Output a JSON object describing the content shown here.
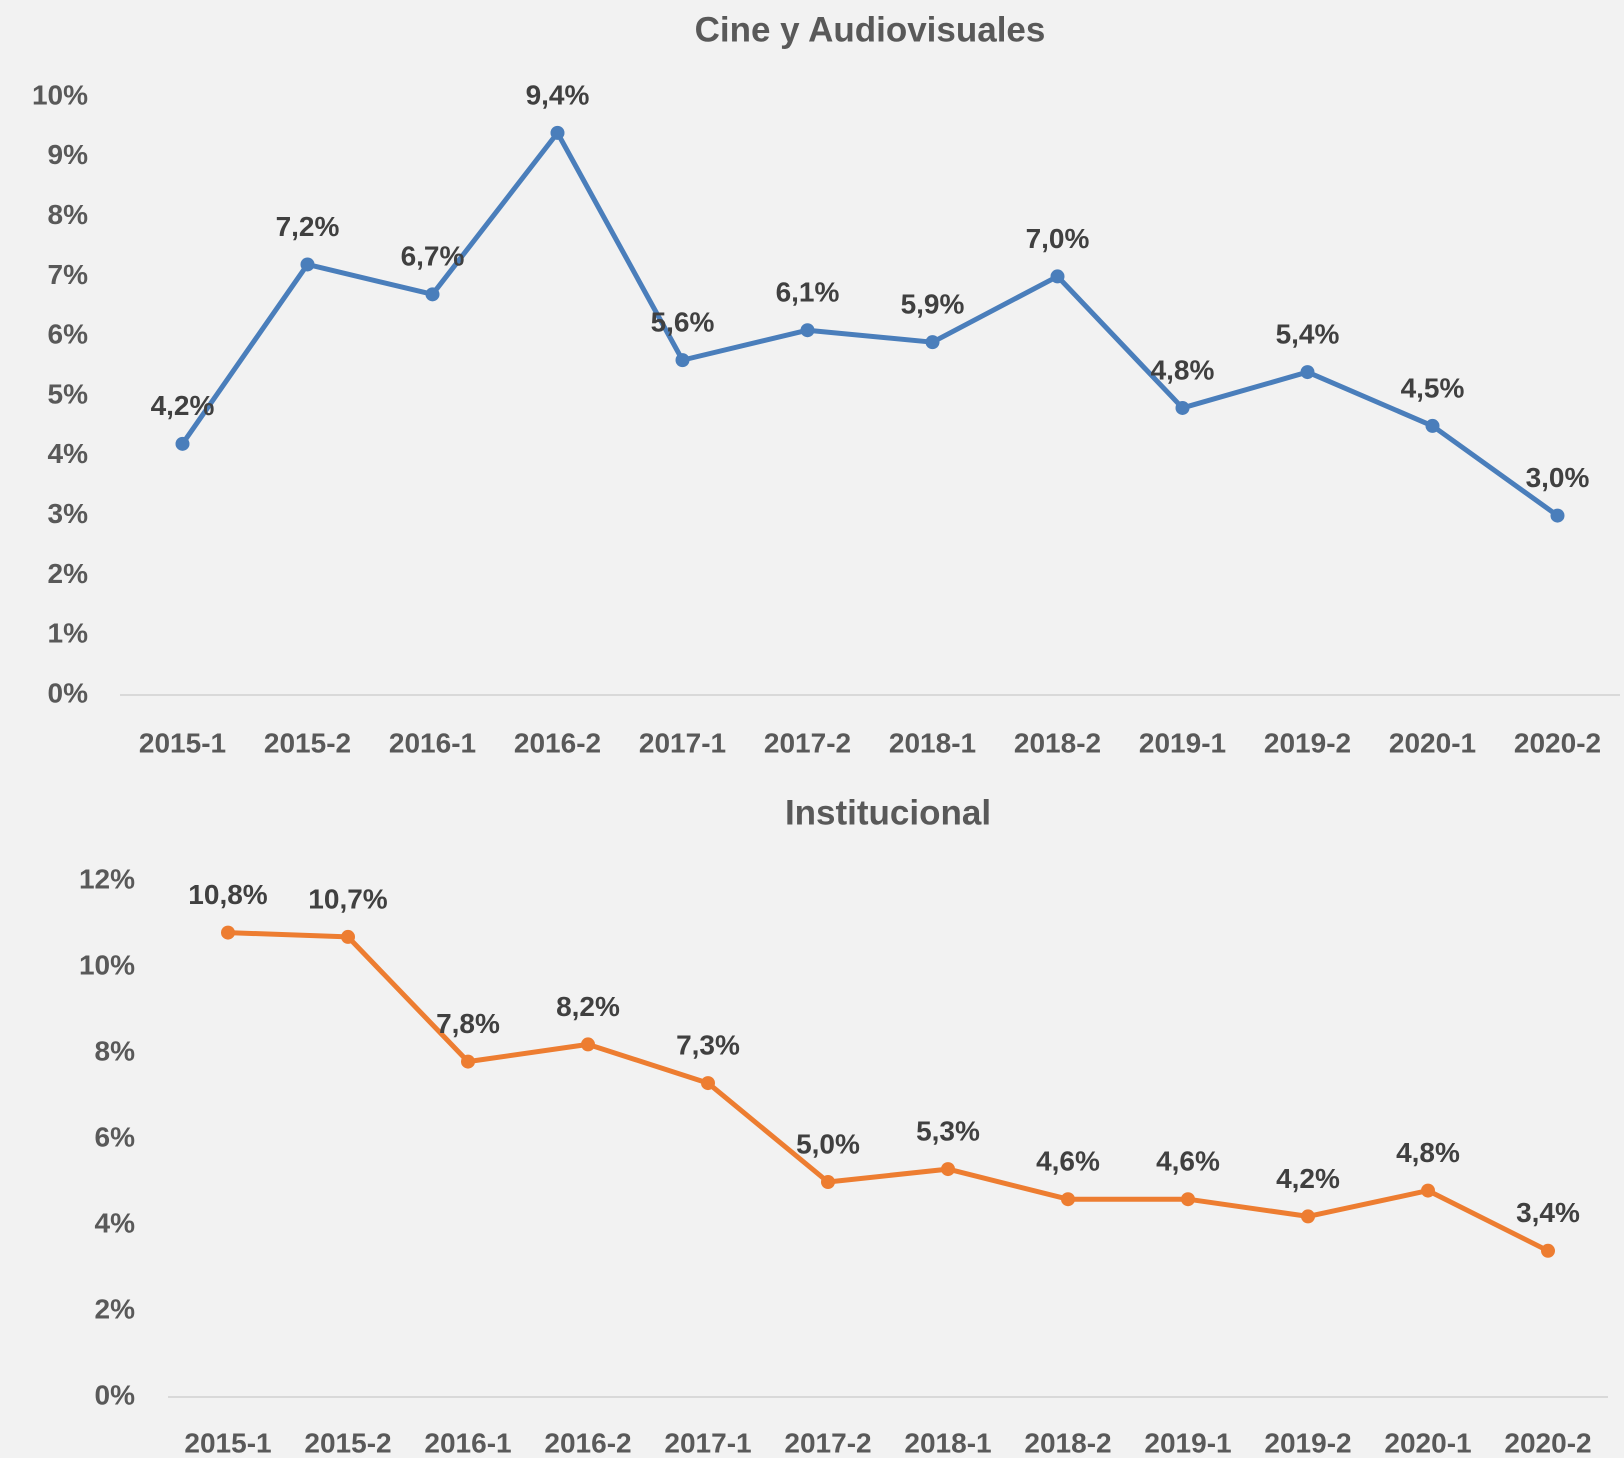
{
  "chart_data": [
    {
      "type": "line",
      "title": "Cine y Audiovisuales",
      "categories": [
        "2015-1",
        "2015-2",
        "2016-1",
        "2016-2",
        "2017-1",
        "2017-2",
        "2018-1",
        "2018-2",
        "2019-1",
        "2019-2",
        "2020-1",
        "2020-2"
      ],
      "series": [
        {
          "name": "Cine y Audiovisuales",
          "color": "#4a7ebb",
          "values": [
            4.2,
            7.2,
            6.7,
            9.4,
            5.6,
            6.1,
            5.9,
            7.0,
            4.8,
            5.4,
            4.5,
            3.0
          ],
          "value_labels": [
            "4,2%",
            "7,2%",
            "6,7%",
            "9,4%",
            "5,6%",
            "6,1%",
            "5,9%",
            "7,0%",
            "4,8%",
            "5,4%",
            "4,5%",
            "3,0%"
          ]
        }
      ],
      "ylim": [
        0,
        10
      ],
      "yticks": [
        {
          "value": 0,
          "label": "0%"
        },
        {
          "value": 1,
          "label": "1%"
        },
        {
          "value": 2,
          "label": "2%"
        },
        {
          "value": 3,
          "label": "3%"
        },
        {
          "value": 4,
          "label": "4%"
        },
        {
          "value": 5,
          "label": "5%"
        },
        {
          "value": 6,
          "label": "6%"
        },
        {
          "value": 7,
          "label": "7%"
        },
        {
          "value": 8,
          "label": "8%"
        },
        {
          "value": 9,
          "label": "9%"
        },
        {
          "value": 10,
          "label": "10%"
        }
      ],
      "grid": false
    },
    {
      "type": "line",
      "title": "Institucional",
      "categories": [
        "2015-1",
        "2015-2",
        "2016-1",
        "2016-2",
        "2017-1",
        "2017-2",
        "2018-1",
        "2018-2",
        "2019-1",
        "2019-2",
        "2020-1",
        "2020-2"
      ],
      "series": [
        {
          "name": "Institucional",
          "color": "#ed7d31",
          "values": [
            10.8,
            10.7,
            7.8,
            8.2,
            7.3,
            5.0,
            5.3,
            4.6,
            4.6,
            4.2,
            4.8,
            3.4
          ],
          "value_labels": [
            "10,8%",
            "10,7%",
            "7,8%",
            "8,2%",
            "7,3%",
            "5,0%",
            "5,3%",
            "4,6%",
            "4,6%",
            "4,2%",
            "4,8%",
            "3,4%"
          ]
        }
      ],
      "ylim": [
        0,
        12
      ],
      "yticks": [
        {
          "value": 0,
          "label": "0%"
        },
        {
          "value": 2,
          "label": "2%"
        },
        {
          "value": 4,
          "label": "4%"
        },
        {
          "value": 6,
          "label": "6%"
        },
        {
          "value": 8,
          "label": "8%"
        },
        {
          "value": 10,
          "label": "10%"
        },
        {
          "value": 12,
          "label": "12%"
        }
      ],
      "grid": false
    }
  ]
}
